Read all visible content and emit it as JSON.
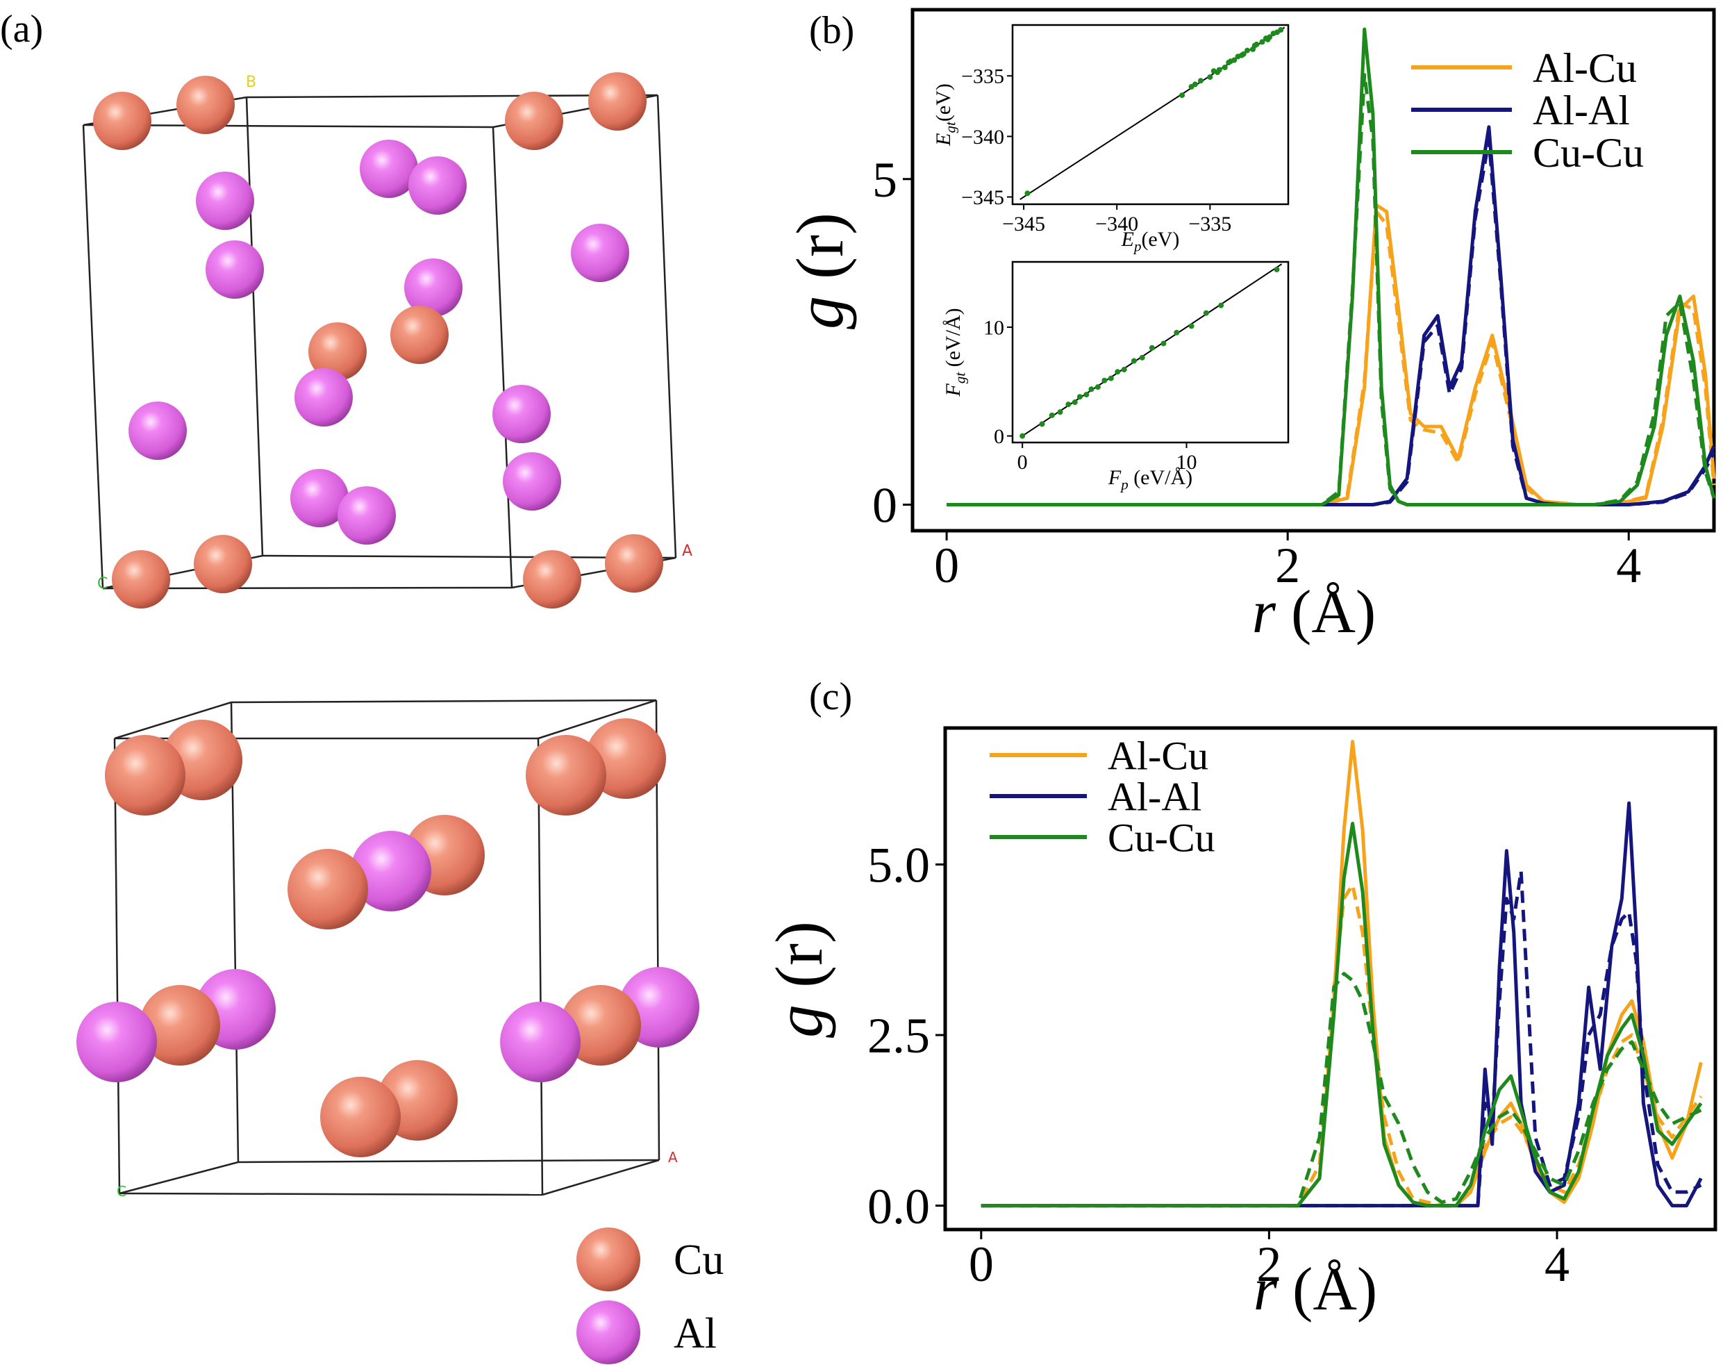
{
  "panels": {
    "a": {
      "label": "(a)"
    },
    "b": {
      "label": "(b)"
    },
    "c": {
      "label": "(c)"
    }
  },
  "structure_legend": [
    {
      "label": "Cu",
      "color": "#e8806a"
    },
    {
      "label": "Al",
      "color": "#e26ee6"
    }
  ],
  "axis_markers": {
    "top": [
      "B",
      "A",
      "C"
    ],
    "bottom": [
      "A",
      "C"
    ]
  },
  "colors": {
    "Al-Cu": "#f7a21b",
    "Al-Al": "#15157e",
    "Cu-Cu": "#1e8a1e",
    "Cu_atom": "#e8806a",
    "Al_atom": "#e26ee6"
  },
  "chart_data": [
    {
      "id": "b",
      "type": "line",
      "xlabel": "r (Å)",
      "ylabel": "g (r)",
      "xlim": [
        -0.2,
        4.5
      ],
      "ylim": [
        -0.4,
        7.6
      ],
      "xticks": [
        0,
        2,
        4
      ],
      "yticks": [
        0,
        5
      ],
      "legend_position": "top-right",
      "series": [
        {
          "name": "Al-Cu",
          "style": "solid",
          "x": [
            0,
            2.2,
            2.35,
            2.45,
            2.52,
            2.58,
            2.65,
            2.72,
            2.8,
            2.9,
            3.0,
            3.1,
            3.2,
            3.3,
            3.4,
            3.5,
            3.7,
            3.9,
            4.1,
            4.2,
            4.3,
            4.38,
            4.45,
            4.5
          ],
          "y": [
            0,
            0,
            0.1,
            1.8,
            4.6,
            4.5,
            3.0,
            1.4,
            1.2,
            1.2,
            0.7,
            1.8,
            2.6,
            1.5,
            0.3,
            0.05,
            0,
            0,
            0.1,
            1.2,
            3.0,
            3.2,
            2.0,
            0.4
          ]
        },
        {
          "name": "Al-Cu",
          "style": "dashed",
          "x": [
            0,
            2.2,
            2.35,
            2.45,
            2.52,
            2.58,
            2.65,
            2.72,
            2.8,
            2.9,
            3.0,
            3.1,
            3.2,
            3.3,
            3.4,
            3.5,
            3.7,
            3.9,
            4.1,
            4.2,
            4.3,
            4.38,
            4.45,
            4.5
          ],
          "y": [
            0,
            0,
            0.15,
            1.9,
            4.5,
            4.3,
            2.8,
            1.3,
            1.15,
            1.1,
            0.65,
            1.7,
            2.5,
            1.4,
            0.25,
            0.05,
            0,
            0,
            0.12,
            1.3,
            3.1,
            3.0,
            1.8,
            0.3
          ]
        },
        {
          "name": "Al-Al",
          "style": "solid",
          "x": [
            0,
            2.5,
            2.6,
            2.7,
            2.8,
            2.88,
            2.95,
            3.02,
            3.1,
            3.18,
            3.25,
            3.32,
            3.4,
            3.5,
            3.6,
            4.0,
            4.2,
            4.35,
            4.45,
            4.5
          ],
          "y": [
            0,
            0,
            0.05,
            0.4,
            2.6,
            2.9,
            1.8,
            2.2,
            4.5,
            5.8,
            3.5,
            1.0,
            0.1,
            0.02,
            0,
            0,
            0.05,
            0.2,
            0.6,
            0.9
          ]
        },
        {
          "name": "Al-Al",
          "style": "dashed",
          "x": [
            0,
            2.5,
            2.6,
            2.7,
            2.8,
            2.88,
            2.95,
            3.02,
            3.1,
            3.18,
            3.25,
            3.32,
            3.4,
            3.5,
            3.6,
            4.0,
            4.2,
            4.35,
            4.45,
            4.5
          ],
          "y": [
            0,
            0,
            0.04,
            0.35,
            2.5,
            2.75,
            1.7,
            2.1,
            4.4,
            5.6,
            3.4,
            0.9,
            0.1,
            0.02,
            0,
            0,
            0.04,
            0.18,
            0.55,
            0.8
          ]
        },
        {
          "name": "Cu-Cu",
          "style": "solid",
          "x": [
            0,
            2.2,
            2.3,
            2.38,
            2.45,
            2.5,
            2.55,
            2.6,
            2.65,
            2.7,
            3.8,
            3.95,
            4.05,
            4.15,
            4.22,
            4.3,
            4.38,
            4.45,
            4.5
          ],
          "y": [
            0,
            0,
            0.15,
            3.2,
            7.3,
            6.0,
            1.8,
            0.3,
            0.05,
            0,
            0,
            0.05,
            0.3,
            1.2,
            2.6,
            3.2,
            2.2,
            0.6,
            0.1
          ]
        },
        {
          "name": "Cu-Cu",
          "style": "dashed",
          "x": [
            0,
            2.2,
            2.3,
            2.38,
            2.45,
            2.5,
            2.55,
            2.6,
            2.65,
            2.7,
            3.8,
            3.95,
            4.05,
            4.15,
            4.22,
            4.3,
            4.38,
            4.45,
            4.5
          ],
          "y": [
            0,
            0,
            0.2,
            3.3,
            6.6,
            5.6,
            1.6,
            0.25,
            0.05,
            0,
            0,
            0.07,
            0.35,
            1.4,
            2.9,
            3.1,
            1.9,
            0.5,
            0.1
          ]
        }
      ]
    },
    {
      "id": "b-inset-energy",
      "type": "scatter",
      "xlabel": "E_p(eV)",
      "ylabel": "E_gt(eV)",
      "xlim": [
        -345.6,
        -330.8
      ],
      "ylim": [
        -345.6,
        -330.8
      ],
      "xticks": [
        -345,
        -340,
        -335
      ],
      "yticks": [
        -345,
        -340,
        -335
      ],
      "x": [
        -344.8,
        -336.5,
        -336.0,
        -335.5,
        -335.0,
        -334.8,
        -334.5,
        -334.2,
        -334.0,
        -333.7,
        -333.5,
        -333.2,
        -333.0,
        -332.7,
        -332.5,
        -332.2,
        -332.0,
        -331.8,
        -331.6,
        -331.4,
        -331.2,
        -335.8,
        -334.6,
        -333.9,
        -333.3,
        -332.6,
        -331.9
      ],
      "y": [
        -344.7,
        -336.6,
        -335.9,
        -335.4,
        -335.1,
        -334.6,
        -334.5,
        -334.3,
        -333.9,
        -333.7,
        -333.4,
        -333.2,
        -332.9,
        -332.8,
        -332.4,
        -332.2,
        -331.9,
        -331.8,
        -331.5,
        -331.4,
        -331.2,
        -335.7,
        -334.7,
        -333.8,
        -333.3,
        -332.5,
        -332.0
      ],
      "fit_line": [
        [
          -345.2,
          -345.2
        ],
        [
          -331.0,
          -331.0
        ]
      ]
    },
    {
      "id": "b-inset-force",
      "type": "scatter",
      "xlabel": "F_p (eV/Å)",
      "ylabel": "F_gt (eV/Å)",
      "xlim": [
        -0.6,
        16.2
      ],
      "ylim": [
        -0.6,
        16.0
      ],
      "xticks": [
        0,
        10
      ],
      "yticks": [
        0,
        10
      ],
      "x": [
        0,
        1.2,
        1.8,
        2.3,
        2.8,
        3.2,
        3.5,
        3.9,
        4.2,
        4.6,
        5.0,
        5.4,
        5.8,
        6.2,
        6.8,
        7.3,
        7.9,
        8.6,
        9.4,
        10.3,
        11.2,
        12.1,
        15.5
      ],
      "y": [
        0,
        1.1,
        1.9,
        2.2,
        2.9,
        3.1,
        3.6,
        3.8,
        4.3,
        4.5,
        5.1,
        5.3,
        5.9,
        6.1,
        6.9,
        7.2,
        8.1,
        8.5,
        9.5,
        10.1,
        11.3,
        12.0,
        15.3
      ],
      "fit_line": [
        [
          0,
          0
        ],
        [
          15.8,
          15.8
        ]
      ]
    },
    {
      "id": "c",
      "type": "line",
      "xlabel": "r (Å)",
      "ylabel": "g (r)",
      "xlim": [
        -0.25,
        5.1
      ],
      "ylim": [
        -0.35,
        7.0
      ],
      "xticks": [
        0,
        2,
        4
      ],
      "yticks": [
        0.0,
        2.5,
        5.0
      ],
      "legend_position": "top-left",
      "series": [
        {
          "name": "Al-Cu",
          "style": "solid",
          "x": [
            0,
            2.2,
            2.35,
            2.45,
            2.52,
            2.58,
            2.65,
            2.72,
            2.8,
            2.9,
            3.0,
            3.1,
            3.2,
            3.3,
            3.4,
            3.5,
            3.6,
            3.68,
            3.75,
            3.85,
            3.95,
            4.05,
            4.15,
            4.25,
            4.35,
            4.45,
            4.52,
            4.6,
            4.7,
            4.8,
            4.9,
            5.0
          ],
          "y": [
            0,
            0,
            0.4,
            3.0,
            5.5,
            6.8,
            5.5,
            3.0,
            1.0,
            0.3,
            0.05,
            0,
            0,
            0,
            0.2,
            0.8,
            1.3,
            1.5,
            1.2,
            0.6,
            0.2,
            0.05,
            0.4,
            1.2,
            2.2,
            2.8,
            3.0,
            2.4,
            1.2,
            0.7,
            1.2,
            2.1
          ]
        },
        {
          "name": "Al-Cu",
          "style": "dashed",
          "x": [
            0,
            2.2,
            2.35,
            2.45,
            2.52,
            2.58,
            2.65,
            2.72,
            2.8,
            2.9,
            3.0,
            3.1,
            3.2,
            3.3,
            3.4,
            3.5,
            3.6,
            3.68,
            3.75,
            3.85,
            3.95,
            4.05,
            4.15,
            4.25,
            4.35,
            4.45,
            4.52,
            4.6,
            4.7,
            4.8,
            4.9,
            5.0
          ],
          "y": [
            0,
            0,
            0.6,
            3.2,
            4.5,
            4.7,
            4.0,
            2.5,
            1.3,
            0.5,
            0.1,
            0.05,
            0,
            0,
            0.3,
            0.9,
            1.2,
            1.3,
            1.1,
            0.7,
            0.3,
            0.2,
            0.6,
            1.3,
            2.0,
            2.4,
            2.5,
            2.0,
            1.3,
            1.0,
            1.3,
            1.6
          ]
        },
        {
          "name": "Al-Al",
          "style": "solid",
          "x": [
            0,
            3.35,
            3.45,
            3.5,
            3.55,
            3.6,
            3.65,
            3.7,
            3.75,
            3.85,
            3.95,
            4.05,
            4.15,
            4.22,
            4.3,
            4.38,
            4.45,
            4.5,
            4.55,
            4.6,
            4.7,
            4.8,
            4.9,
            5.0
          ],
          "y": [
            0,
            0,
            0,
            2.0,
            0.9,
            3.5,
            5.2,
            4.0,
            1.5,
            0.5,
            0.2,
            0.3,
            1.5,
            3.2,
            2.0,
            3.8,
            4.5,
            5.9,
            4.0,
            1.5,
            0.3,
            0,
            0,
            0.4
          ]
        },
        {
          "name": "Al-Al",
          "style": "dashed",
          "x": [
            0,
            3.35,
            3.45,
            3.5,
            3.55,
            3.6,
            3.65,
            3.7,
            3.75,
            3.85,
            3.95,
            4.05,
            4.15,
            4.22,
            4.3,
            4.38,
            4.45,
            4.5,
            4.55,
            4.6,
            4.7,
            4.8,
            4.9,
            5.0
          ],
          "y": [
            0,
            0,
            0,
            1.5,
            1.2,
            3.0,
            4.5,
            4.2,
            4.9,
            1.0,
            0.3,
            0.4,
            1.3,
            2.5,
            2.8,
            3.8,
            4.2,
            4.3,
            3.6,
            2.0,
            0.6,
            0.2,
            0.2,
            0.3
          ]
        },
        {
          "name": "Cu-Cu",
          "style": "solid",
          "x": [
            0,
            2.2,
            2.35,
            2.45,
            2.52,
            2.58,
            2.65,
            2.72,
            2.8,
            2.9,
            3.0,
            3.1,
            3.2,
            3.3,
            3.4,
            3.5,
            3.6,
            3.68,
            3.75,
            3.85,
            3.95,
            4.05,
            4.15,
            4.25,
            4.35,
            4.45,
            4.52,
            4.6,
            4.7,
            4.8,
            4.9,
            5.0
          ],
          "y": [
            0,
            0,
            0.4,
            2.8,
            4.8,
            5.6,
            4.6,
            2.6,
            0.9,
            0.3,
            0.05,
            0,
            0,
            0,
            0.3,
            1.1,
            1.7,
            1.9,
            1.4,
            0.7,
            0.2,
            0.1,
            0.5,
            1.4,
            2.2,
            2.6,
            2.8,
            2.2,
            1.1,
            0.9,
            1.2,
            1.5
          ]
        },
        {
          "name": "Cu-Cu",
          "style": "dashed",
          "x": [
            0,
            2.2,
            2.35,
            2.45,
            2.52,
            2.58,
            2.65,
            2.72,
            2.8,
            2.9,
            3.0,
            3.1,
            3.2,
            3.3,
            3.4,
            3.5,
            3.6,
            3.68,
            3.75,
            3.85,
            3.95,
            4.05,
            4.15,
            4.25,
            4.35,
            4.45,
            4.52,
            4.6,
            4.7,
            4.8,
            4.9,
            5.0
          ],
          "y": [
            0,
            0,
            1.0,
            3.2,
            3.4,
            3.3,
            3.0,
            2.4,
            1.6,
            1.2,
            0.6,
            0.2,
            0.05,
            0.1,
            0.5,
            1.0,
            1.3,
            1.4,
            1.2,
            0.8,
            0.4,
            0.3,
            0.8,
            1.5,
            2.0,
            2.3,
            2.4,
            2.0,
            1.5,
            1.2,
            1.3,
            1.4
          ]
        }
      ]
    }
  ]
}
